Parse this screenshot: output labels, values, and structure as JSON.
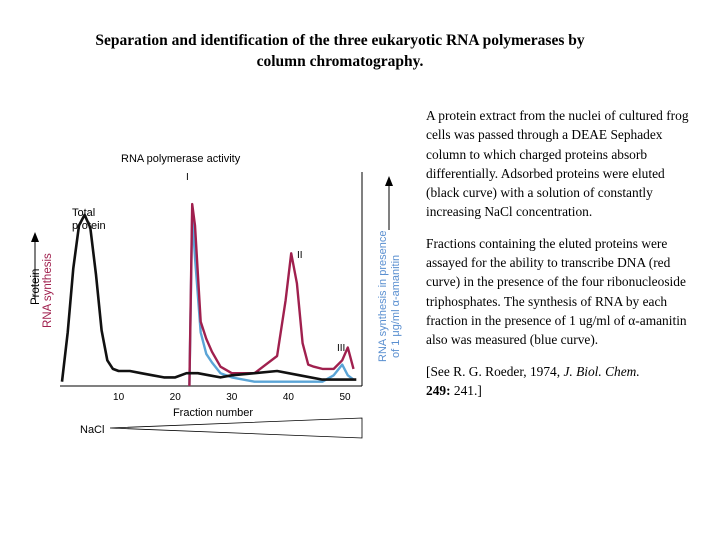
{
  "title_lines": [
    "Separation and identification of the three eukaryotic RNA polymerases by",
    "column chromatography."
  ],
  "description": {
    "paragraph1": "A protein extract from the nuclei of cultured frog cells was passed through a DEAE Sephadex column to which charged proteins absorb differentially. Adsorbed proteins were eluted (black curve) with a solution of constantly increasing NaCl concentration.",
    "paragraph2": "Fractions containing the eluted proteins were assayed for the ability to transcribe DNA (red curve) in the presence of the four ribonucleoside triphosphates. The synthesis of RNA by each fraction in the presence of 1 ug/ml of α-amanitin also was measured (blue curve).",
    "citation_prefix": "[See R. G. Roeder, 1974, ",
    "citation_journal": "J. Biol. Chem.",
    "citation_volume": "249:",
    "citation_suffix": " 241.]"
  },
  "chart_data": {
    "type": "line",
    "title": "RNA polymerase activity",
    "xlabel": "Fraction number",
    "ylabel_left": [
      "Protein",
      "RNA synthesis"
    ],
    "ylabel_right": [
      "RNA synthesis in presence",
      "of 1 μg/ml α-amanitin"
    ],
    "xlim": [
      0,
      53
    ],
    "ylim": [
      0,
      100
    ],
    "xticks": [
      "10",
      "20",
      "30",
      "40",
      "50"
    ],
    "xtick_values": [
      10,
      20,
      30,
      40,
      50
    ],
    "annotations": [
      "Total protein",
      "I",
      "II",
      "III"
    ],
    "gradient_label": "NaCl",
    "series": [
      {
        "key": "protein",
        "color": "#111111",
        "x": [
          0,
          1,
          2,
          3,
          4,
          5,
          6,
          7,
          8,
          9,
          10,
          12,
          14,
          16,
          18,
          20,
          22,
          24,
          26,
          28,
          30,
          34,
          38,
          42,
          46,
          50,
          52
        ],
        "y": [
          2,
          25,
          55,
          75,
          80,
          74,
          52,
          26,
          12,
          8,
          7,
          7,
          6,
          5,
          4,
          4,
          6,
          6,
          5,
          4,
          5,
          6,
          7,
          5,
          3,
          3,
          3
        ]
      },
      {
        "key": "rna_synthesis",
        "color": "#a0204e",
        "x": [
          22.5,
          23,
          23.5,
          24.5,
          25.5,
          26.5,
          28,
          30,
          34,
          38,
          39.5,
          40.5,
          41.5,
          42.5,
          43.5,
          44.5,
          46,
          48,
          49.5,
          50.5,
          51.5
        ],
        "y": [
          0,
          85,
          75,
          30,
          22,
          16,
          9,
          6,
          6,
          14,
          40,
          62,
          48,
          20,
          10,
          9,
          8,
          8,
          12,
          18,
          8
        ]
      },
      {
        "key": "rna_synthesis_alpha_amanitin",
        "color": "#5aa4d6",
        "x": [
          22.5,
          23,
          23.5,
          24.5,
          25.5,
          26.5,
          28,
          30,
          34,
          38,
          42,
          46,
          48,
          49.5,
          50.5,
          51.5
        ],
        "y": [
          0,
          80,
          60,
          25,
          15,
          11,
          6,
          4,
          2,
          2,
          2,
          2,
          5,
          10,
          5,
          3
        ]
      }
    ]
  }
}
